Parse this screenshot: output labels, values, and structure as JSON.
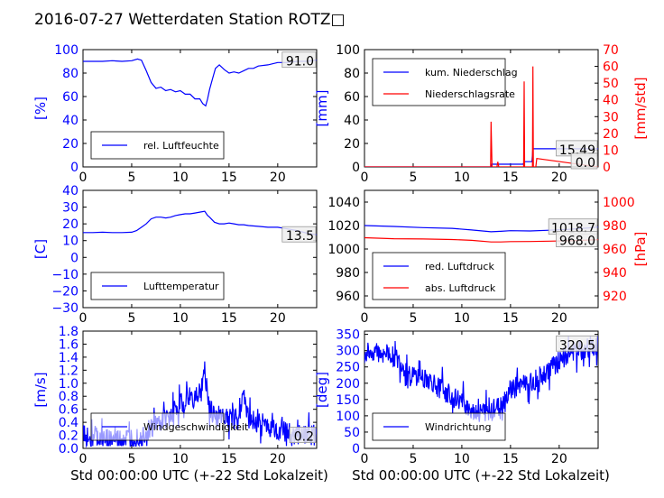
{
  "title": "2016-07-27 Wetterdaten Station ROTZ□",
  "xlabel": "Std 00:00:00 UTC (+-22 Std Lokalzeit)",
  "chart_data": [
    {
      "type": "line",
      "ylabel": "[%]",
      "ylabel_color": "#0000ff",
      "xlim": [
        0,
        24
      ],
      "ylim": [
        0,
        100
      ],
      "xticks": [
        "0",
        "5",
        "10",
        "15",
        "20"
      ],
      "yticks": [
        "0",
        "20",
        "40",
        "60",
        "80",
        "100"
      ],
      "ytick_color": "#0000ff",
      "legend_position": "lower left",
      "series": [
        {
          "name": "rel. Luftfeuchte",
          "color": "#0000ff",
          "x": [
            0,
            1,
            2,
            3,
            4,
            5,
            5.6,
            6,
            6.5,
            7,
            7.5,
            8,
            8.5,
            9,
            9.5,
            10,
            10.5,
            11,
            11.5,
            12,
            12.3,
            12.6,
            12.8,
            13,
            13.3,
            13.6,
            14,
            14.5,
            15,
            15.5,
            16,
            16.5,
            17,
            17.5,
            18,
            19,
            20,
            21,
            22,
            23,
            24
          ],
          "y": [
            90,
            90,
            90,
            90.5,
            90,
            90.5,
            92,
            91,
            82,
            72,
            67,
            68,
            65,
            66,
            64,
            65,
            62,
            62,
            58,
            58,
            54,
            52,
            58,
            66,
            75,
            84,
            87,
            83,
            80,
            81,
            80,
            82,
            84,
            84,
            86,
            87,
            89,
            89,
            90,
            90,
            91
          ]
        }
      ],
      "end_value_label": "91.0"
    },
    {
      "type": "line",
      "ylabel": "[mm]",
      "ylabel_color": "#0000ff",
      "ylabel_right": "[mm/std]",
      "ylabel_right_color": "#ff0000",
      "xlim": [
        0,
        24
      ],
      "ylim": [
        0,
        100
      ],
      "ylim_right": [
        0,
        70
      ],
      "xticks": [
        "0",
        "5",
        "10",
        "15",
        "20"
      ],
      "yticks": [
        "0",
        "20",
        "40",
        "60",
        "80",
        "100"
      ],
      "yticks_right": [
        "0",
        "10",
        "20",
        "30",
        "40",
        "50",
        "60",
        "70"
      ],
      "legend_position": "upper left",
      "series": [
        {
          "name": "kum. Niederschlag",
          "color": "#0000ff",
          "axis": "left",
          "x": [
            0,
            13,
            13.05,
            16.3,
            16.4,
            17.2,
            17.3,
            24
          ],
          "y": [
            0,
            0,
            2.3,
            2.3,
            4.5,
            4.5,
            15.49,
            15.49
          ]
        },
        {
          "name": "Niederschlagsrate",
          "color": "#ff0000",
          "axis": "right",
          "x": [
            0,
            12.95,
            13,
            13.1,
            13.15,
            13.6,
            13.7,
            13.8,
            13.9,
            16.35,
            16.4,
            16.45,
            16.5,
            17.25,
            17.3,
            17.35,
            17.4,
            17.6,
            17.7,
            24
          ],
          "y": [
            0,
            0,
            27,
            0,
            0,
            0,
            3,
            0,
            0,
            0,
            51,
            0,
            0,
            0,
            60,
            0,
            0,
            0,
            5,
            0
          ]
        }
      ],
      "end_value_labels": [
        "15.49",
        "0.0"
      ]
    },
    {
      "type": "line",
      "ylabel": "[C]",
      "ylabel_color": "#0000ff",
      "xlim": [
        0,
        24
      ],
      "ylim": [
        -30,
        40
      ],
      "xticks": [
        "0",
        "5",
        "10",
        "15",
        "20"
      ],
      "yticks": [
        "−30",
        "−20",
        "−10",
        "0",
        "10",
        "20",
        "30",
        "40"
      ],
      "ytick_color": "#0000ff",
      "legend_position": "lower left",
      "series": [
        {
          "name": "Lufttemperatur",
          "color": "#0000ff",
          "x": [
            0,
            1,
            2,
            3,
            4,
            5,
            5.5,
            6,
            6.5,
            7,
            7.5,
            8,
            8.5,
            9,
            9.5,
            10,
            10.5,
            11,
            11.5,
            12,
            12.5,
            12.8,
            13,
            13.5,
            14,
            14.5,
            15,
            15.5,
            16,
            16.5,
            17,
            18,
            19,
            20,
            21,
            22,
            23,
            24
          ],
          "y": [
            14.8,
            14.8,
            15,
            14.8,
            14.8,
            15,
            16,
            18,
            20,
            23,
            24,
            24,
            23.5,
            24,
            25,
            25.5,
            26,
            26,
            26.5,
            27,
            27.5,
            25,
            24,
            21,
            20,
            20,
            20.5,
            20,
            19.5,
            19.5,
            19,
            18.5,
            18,
            18,
            17,
            16,
            14.5,
            13.5
          ]
        }
      ],
      "end_value_label": "13.5"
    },
    {
      "type": "line",
      "ylabel_right": "[hPa]",
      "ylabel_right_color": "#ff0000",
      "xlim": [
        0,
        24
      ],
      "ylim": [
        950,
        1050
      ],
      "ylim_right": [
        910,
        1010
      ],
      "xticks": [
        "0",
        "5",
        "10",
        "15",
        "20"
      ],
      "yticks": [
        "960",
        "980",
        "1000",
        "1020",
        "1040"
      ],
      "yticks_right": [
        "920",
        "940",
        "960",
        "980",
        "1000"
      ],
      "legend_position": "lower left",
      "series": [
        {
          "name": "red. Luftdruck",
          "color": "#0000ff",
          "axis": "left",
          "x": [
            0,
            3,
            6,
            9,
            11,
            13,
            14,
            15,
            17,
            19,
            21,
            23,
            24
          ],
          "y": [
            1020.0,
            1019.2,
            1018.2,
            1017.6,
            1016.2,
            1014.7,
            1015.1,
            1015.6,
            1015.4,
            1016.0,
            1016.8,
            1017.9,
            1018.7
          ]
        },
        {
          "name": "abs. Luftdruck",
          "color": "#ff0000",
          "axis": "right",
          "x": [
            0,
            3,
            6,
            9,
            11,
            13,
            14,
            15,
            17,
            19,
            21,
            23,
            24
          ],
          "y": [
            969.6,
            968.8,
            968.5,
            968.1,
            967.4,
            966.0,
            966.0,
            966.3,
            966.4,
            966.7,
            967.0,
            967.6,
            968.0
          ]
        }
      ],
      "end_value_labels": [
        "1018.7",
        "968.0"
      ]
    },
    {
      "type": "line",
      "ylabel": "[m/s]",
      "ylabel_color": "#0000ff",
      "xlim": [
        0,
        24
      ],
      "ylim": [
        0,
        1.8
      ],
      "xticks": [
        "0",
        "5",
        "10",
        "15",
        "20"
      ],
      "yticks": [
        "0.0",
        "0.2",
        "0.4",
        "0.6",
        "0.8",
        "1.0",
        "1.2",
        "1.4",
        "1.6",
        "1.8"
      ],
      "ytick_color": "#0000ff",
      "legend_position": "lower left",
      "noisy": true,
      "series": [
        {
          "name": "Windgeschwindigkeit",
          "color": "#0000ff",
          "x": [
            0,
            1,
            2,
            3,
            4,
            5,
            6,
            7,
            8,
            9,
            10,
            11,
            12,
            12.5,
            13,
            14,
            15,
            16,
            16.5,
            17,
            18,
            19,
            20,
            21,
            22,
            23,
            24
          ],
          "y": [
            0.2,
            0.18,
            0.15,
            0.12,
            0.12,
            0.15,
            0.2,
            0.3,
            0.4,
            0.5,
            0.7,
            0.75,
            0.8,
            1.2,
            0.55,
            0.5,
            0.45,
            0.5,
            0.9,
            0.45,
            0.4,
            0.35,
            0.3,
            0.25,
            0.22,
            0.22,
            0.2
          ]
        }
      ],
      "end_value_label": "0.2"
    },
    {
      "type": "line",
      "ylabel": "[deg]",
      "ylabel_color": "#0000ff",
      "xlim": [
        0,
        24
      ],
      "ylim": [
        0,
        360
      ],
      "xticks": [
        "0",
        "5",
        "10",
        "15",
        "20"
      ],
      "yticks": [
        "0",
        "50",
        "100",
        "150",
        "200",
        "250",
        "300",
        "350"
      ],
      "ytick_color": "#0000ff",
      "legend_position": "lower left",
      "noisy": true,
      "series": [
        {
          "name": "Windrichtung",
          "color": "#0000ff",
          "x": [
            0,
            1,
            2,
            3,
            4,
            5,
            6,
            7,
            8,
            9,
            10,
            11,
            12,
            13,
            14,
            15,
            16,
            17,
            18,
            19,
            20,
            21,
            22,
            23,
            24
          ],
          "y": [
            290,
            300,
            295,
            280,
            250,
            220,
            220,
            200,
            180,
            160,
            140,
            120,
            110,
            110,
            130,
            180,
            200,
            200,
            220,
            240,
            270,
            290,
            300,
            310,
            320.5
          ]
        }
      ],
      "end_value_label": "320.5"
    }
  ]
}
